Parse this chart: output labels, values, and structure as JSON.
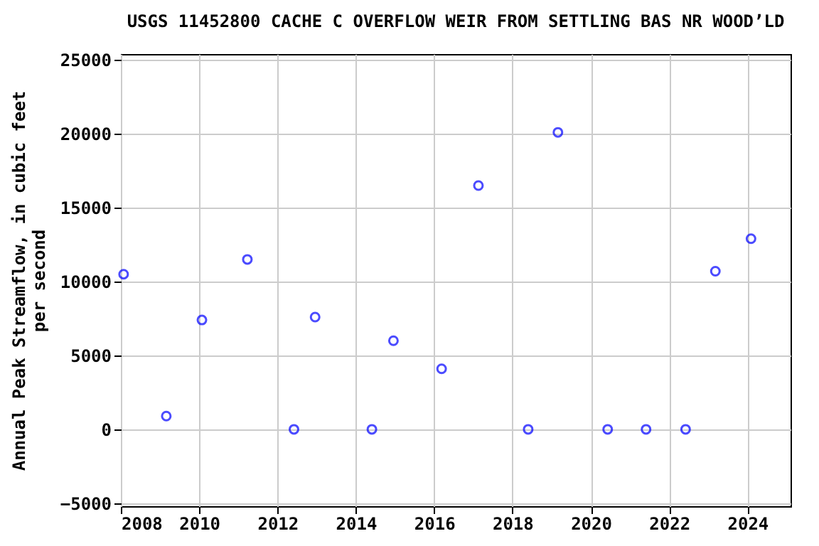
{
  "chart_data": {
    "type": "scatter",
    "title": "USGS 11452800 CACHE C OVERFLOW WEIR FROM SETTLING BAS NR WOOD’LD",
    "ylabel": "Annual Peak Streamflow, in cubic feet\nper second",
    "x": [
      2008.07,
      2009.16,
      2010.07,
      2011.23,
      2012.42,
      2012.96,
      2014.41,
      2014.96,
      2016.19,
      2017.13,
      2018.4,
      2019.16,
      2020.43,
      2021.41,
      2022.42,
      2023.18,
      2024.09
    ],
    "series": [
      {
        "color": "#0000ff",
        "values": [
          10500,
          900,
          7400,
          11500,
          0,
          7600,
          0,
          6000,
          4100,
          16500,
          0,
          20100,
          0,
          0,
          0,
          10700,
          12900
        ]
      }
    ],
    "xlim": [
      2008,
      2025.1
    ],
    "ylim": [
      -5200,
      25400
    ],
    "xticks": [
      2008,
      2010,
      2012,
      2014,
      2016,
      2018,
      2020,
      2022,
      2024
    ],
    "yticks": [
      -5000,
      0,
      5000,
      10000,
      15000,
      20000,
      25000
    ],
    "grid": true,
    "marker": "circle"
  }
}
